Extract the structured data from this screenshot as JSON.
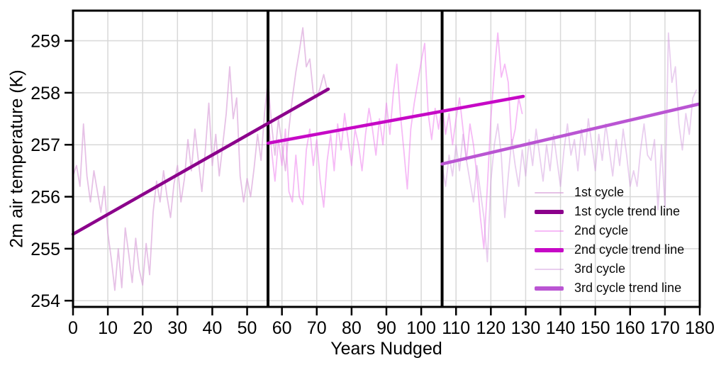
{
  "figure": {
    "background": "#ffffff",
    "border_color": "#000000",
    "grid_color": "#d8d8d8",
    "text_color": "#000000"
  },
  "chart_data": {
    "type": "line",
    "title": "",
    "xlabel": "Years Nudged",
    "ylabel": "2m air temperature (K)",
    "xlim": [
      0,
      180
    ],
    "ylim": [
      253.88,
      259.58
    ],
    "xticks": [
      0,
      10,
      20,
      30,
      40,
      50,
      60,
      70,
      80,
      90,
      100,
      110,
      120,
      130,
      140,
      150,
      160,
      170,
      180
    ],
    "yticks": [
      254,
      255,
      256,
      257,
      258,
      259
    ],
    "grid": true,
    "legend_position": "lower right",
    "vertical_lines": [
      {
        "x": 56,
        "color": "#000000",
        "width": 4
      },
      {
        "x": 106,
        "color": "#000000",
        "width": 4
      }
    ],
    "series": [
      {
        "name": "1st cycle",
        "role": "cycle",
        "color": "#D8A0D8",
        "opacity": 0.65,
        "width": 1.8,
        "x_start": 0,
        "x_step": 1,
        "values": [
          256.4,
          256.6,
          256.2,
          257.4,
          256.4,
          255.9,
          256.5,
          256.1,
          255.7,
          256.2,
          255.3,
          254.8,
          254.2,
          255.0,
          254.25,
          255.4,
          254.9,
          254.35,
          255.2,
          254.6,
          254.3,
          255.1,
          254.5,
          255.7,
          256.3,
          255.9,
          256.5,
          256.0,
          255.6,
          256.25,
          256.6,
          255.9,
          256.35,
          257.1,
          256.5,
          257.3,
          256.7,
          256.1,
          256.9,
          257.8,
          256.6,
          257.2,
          256.4,
          257.0,
          257.6,
          258.5,
          257.5,
          257.9,
          256.4,
          255.9,
          256.35,
          256.0,
          256.55,
          257.2,
          256.7,
          257.6,
          258.25,
          257.4,
          256.8,
          257.5,
          257.0,
          256.5,
          257.3,
          257.9,
          258.4,
          258.8,
          259.25,
          258.5,
          258.65,
          258.0,
          257.9,
          258.1,
          258.35,
          258.05
        ]
      },
      {
        "name": "1st cycle trend line",
        "role": "trend",
        "color": "#8B008B",
        "opacity": 1,
        "width": 4.5,
        "x": [
          0,
          73.3
        ],
        "y": [
          255.28,
          258.07
        ]
      },
      {
        "name": "2nd cycle",
        "role": "cycle",
        "color": "#EE82EE",
        "opacity": 0.55,
        "width": 1.8,
        "x_start": 56,
        "x_step": 1,
        "values": [
          257.5,
          256.9,
          256.3,
          257.1,
          256.6,
          257.3,
          256.1,
          255.9,
          256.8,
          256.0,
          255.85,
          256.9,
          257.3,
          256.6,
          257.1,
          256.3,
          255.8,
          256.7,
          257.2,
          256.5,
          257.4,
          256.9,
          257.6,
          257.1,
          256.6,
          257.3,
          257.0,
          256.5,
          257.2,
          257.7,
          257.3,
          256.8,
          257.5,
          257.0,
          257.8,
          257.2,
          258.0,
          258.55,
          257.6,
          256.9,
          256.15,
          257.3,
          257.8,
          258.2,
          258.6,
          258.95,
          257.6,
          257.1,
          257.7,
          257.3,
          257.8,
          257.2,
          257.6,
          257.0,
          257.5,
          257.9,
          257.3,
          256.7,
          257.4,
          257.0,
          256.4,
          255.6,
          255.0,
          256.2,
          257.5,
          258.4,
          259.15,
          258.3,
          258.55,
          258.2,
          257.0,
          257.3,
          257.9,
          257.6
        ]
      },
      {
        "name": "2nd cycle trend line",
        "role": "trend",
        "color": "#C608C6",
        "opacity": 1,
        "width": 4.5,
        "x": [
          56,
          129.3
        ],
        "y": [
          257.03,
          257.93
        ]
      },
      {
        "name": "3rd cycle",
        "role": "cycle",
        "color": "#CE93DC",
        "opacity": 0.45,
        "width": 1.8,
        "x_start": 106,
        "x_step": 1,
        "values": [
          256.6,
          256.2,
          256.8,
          256.4,
          257.0,
          256.5,
          257.2,
          256.7,
          256.3,
          255.9,
          256.6,
          256.1,
          255.6,
          254.75,
          256.3,
          257.0,
          257.4,
          256.8,
          255.6,
          256.4,
          257.1,
          256.6,
          256.2,
          256.9,
          256.4,
          257.1,
          256.6,
          257.3,
          256.8,
          256.3,
          257.0,
          256.5,
          257.2,
          256.7,
          256.2,
          256.9,
          257.4,
          256.8,
          257.1,
          256.5,
          257.3,
          256.8,
          257.5,
          257.0,
          256.5,
          257.2,
          256.7,
          257.4,
          256.9,
          256.4,
          257.1,
          256.6,
          257.3,
          256.8,
          256.2,
          256.5,
          256.2,
          256.9,
          257.4,
          256.8,
          256.7,
          257.1,
          255.75,
          257.0,
          255.8,
          259.15,
          258.2,
          258.5,
          257.4,
          256.9,
          257.6,
          257.2,
          257.9,
          258.05
        ]
      },
      {
        "name": "3rd cycle trend line",
        "role": "trend",
        "color": "#BA55D3",
        "opacity": 1,
        "width": 4.5,
        "x": [
          106,
          179.6
        ],
        "y": [
          256.63,
          257.78
        ]
      }
    ]
  },
  "legend": {
    "entries": [
      {
        "label": "1st cycle",
        "color": "#D8A0D8",
        "opacity": 0.65,
        "thickness": 2
      },
      {
        "label": "1st cycle trend line",
        "color": "#8B008B",
        "opacity": 1,
        "thickness": 6
      },
      {
        "label": "2nd cycle",
        "color": "#EE82EE",
        "opacity": 0.55,
        "thickness": 2
      },
      {
        "label": "2nd cycle trend line",
        "color": "#C608C6",
        "opacity": 1,
        "thickness": 6
      },
      {
        "label": "3rd cycle",
        "color": "#CE93DC",
        "opacity": 0.45,
        "thickness": 2
      },
      {
        "label": "3rd cycle trend line",
        "color": "#BA55D3",
        "opacity": 1,
        "thickness": 6
      }
    ]
  }
}
